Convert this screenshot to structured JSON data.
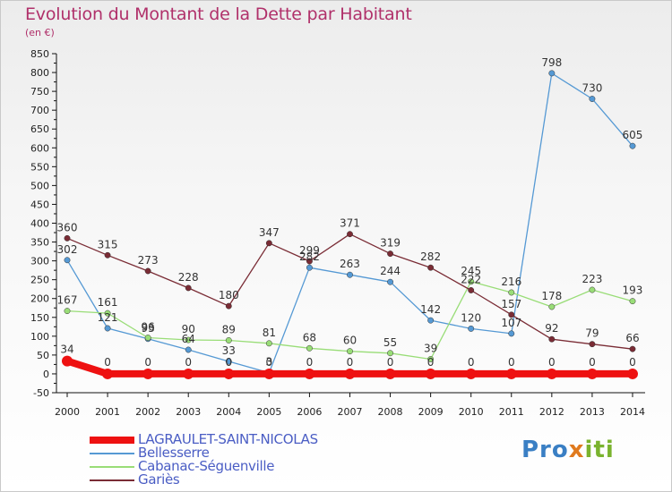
{
  "title": "Evolution du Montant de la Dette par Habitant",
  "unit": "(en €)",
  "logo": {
    "part1": "Pro",
    "part2": "x",
    "part3": "iti"
  },
  "chart_data": {
    "type": "line",
    "x": [
      "2000",
      "2001",
      "2002",
      "2003",
      "2004",
      "2005",
      "2006",
      "2007",
      "2008",
      "2009",
      "2010",
      "2011",
      "2012",
      "2013",
      "2014"
    ],
    "ylim": [
      -50,
      850
    ],
    "yticks": [
      -50,
      0,
      50,
      100,
      150,
      200,
      250,
      300,
      350,
      400,
      450,
      500,
      550,
      600,
      650,
      700,
      750,
      800,
      850
    ],
    "grid": false,
    "legend_position": "bottom-left",
    "series": [
      {
        "name": "LAGRAULET-SAINT-NICOLAS",
        "color": "#ee1111",
        "width": 8,
        "marker": 6,
        "values": [
          34,
          0,
          0,
          0,
          0,
          0,
          0,
          0,
          0,
          0,
          0,
          0,
          0,
          0,
          0
        ]
      },
      {
        "name": "Bellesserre",
        "color": "#5599d4",
        "width": 1.3,
        "marker": 3.2,
        "values": [
          302,
          121,
          93,
          64,
          33,
          3,
          282,
          263,
          244,
          142,
          120,
          107,
          798,
          730,
          605
        ]
      },
      {
        "name": "Cabanac-Séguenville",
        "color": "#99dd77",
        "width": 1.3,
        "marker": 3.2,
        "values": [
          167,
          161,
          96,
          90,
          89,
          81,
          68,
          60,
          55,
          39,
          245,
          216,
          178,
          223,
          193
        ]
      },
      {
        "name": "Gariès",
        "color": "#7a2c35",
        "width": 1.3,
        "marker": 3.2,
        "values": [
          360,
          315,
          273,
          228,
          180,
          347,
          299,
          371,
          319,
          282,
          222,
          157,
          92,
          79,
          66
        ]
      }
    ]
  }
}
